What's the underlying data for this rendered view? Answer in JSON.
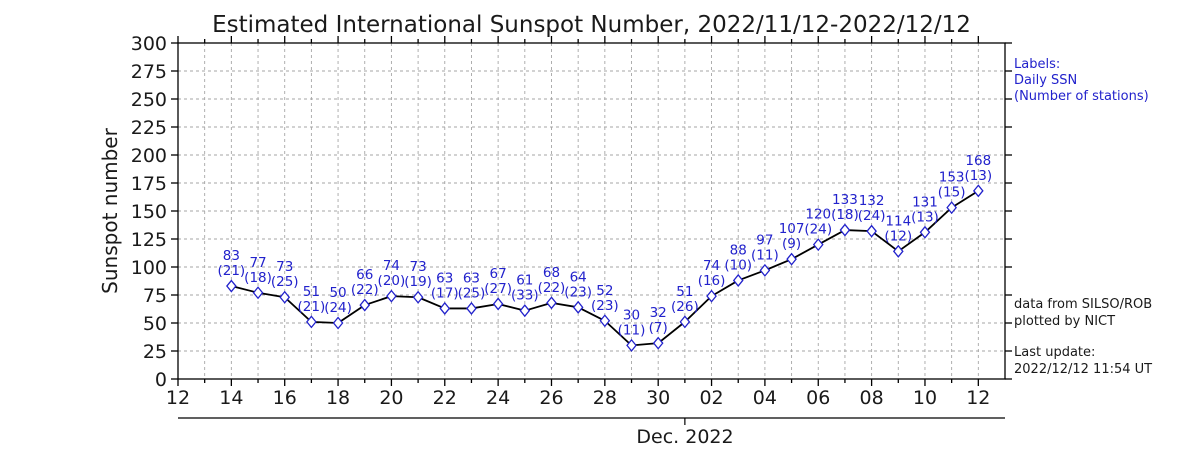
{
  "colors": {
    "accent_blue": "#2222cc",
    "line_black": "#000000",
    "grid_gray": "#a6a6a6",
    "text_black": "#1a1a1a"
  },
  "side_notes": {
    "legend": [
      "Labels:",
      "Daily SSN",
      "(Number of stations)"
    ],
    "credit": [
      "data from SILSO/ROB",
      "plotted by NICT"
    ],
    "last_update": [
      "Last update:",
      "2022/12/12 11:54 UT"
    ]
  },
  "chart_data": {
    "type": "line",
    "title": "Estimated International Sunspot Number, 2022/11/12-2022/12/12",
    "xlabel": "",
    "ylabel": "Sunspot number",
    "ylim": [
      0,
      300
    ],
    "ytick_step": 25,
    "grid": true,
    "legend_position": "none",
    "x_axis": {
      "start_date": "2022/11/12",
      "total_days": 31,
      "major_tick_every_days": 2,
      "minor_tick_every_days": 1,
      "tick_labels": [
        "12",
        "14",
        "16",
        "18",
        "20",
        "22",
        "24",
        "26",
        "28",
        "30",
        "02",
        "04",
        "06",
        "08",
        "10",
        "12"
      ],
      "month_label": "Dec. 2022",
      "month_tick_day_index": 19
    },
    "series": [
      {
        "name": "Daily SSN",
        "line_color": "#000000",
        "marker": "open-diamond",
        "marker_color": "#2222cc",
        "label_color": "#2222cc",
        "first_point_day_index": 2,
        "points": [
          {
            "date": "11/14",
            "value": 83,
            "stations": 21
          },
          {
            "date": "11/15",
            "value": 77,
            "stations": 18
          },
          {
            "date": "11/16",
            "value": 73,
            "stations": 25
          },
          {
            "date": "11/17",
            "value": 51,
            "stations": 21
          },
          {
            "date": "11/18",
            "value": 50,
            "stations": 24
          },
          {
            "date": "11/19",
            "value": 66,
            "stations": 22
          },
          {
            "date": "11/20",
            "value": 74,
            "stations": 20
          },
          {
            "date": "11/21",
            "value": 73,
            "stations": 19
          },
          {
            "date": "11/22",
            "value": 63,
            "stations": 17
          },
          {
            "date": "11/23",
            "value": 63,
            "stations": 25
          },
          {
            "date": "11/24",
            "value": 67,
            "stations": 27
          },
          {
            "date": "11/25",
            "value": 61,
            "stations": 33
          },
          {
            "date": "11/26",
            "value": 68,
            "stations": 22
          },
          {
            "date": "11/27",
            "value": 64,
            "stations": 23
          },
          {
            "date": "11/28",
            "value": 52,
            "stations": 23
          },
          {
            "date": "11/29",
            "value": 30,
            "stations": 11
          },
          {
            "date": "11/30",
            "value": 32,
            "stations": 7
          },
          {
            "date": "12/01",
            "value": 51,
            "stations": 26
          },
          {
            "date": "12/02",
            "value": 74,
            "stations": 16
          },
          {
            "date": "12/03",
            "value": 88,
            "stations": 10
          },
          {
            "date": "12/04",
            "value": 97,
            "stations": 11
          },
          {
            "date": "12/05",
            "value": 107,
            "stations": 9
          },
          {
            "date": "12/06",
            "value": 120,
            "stations": 24
          },
          {
            "date": "12/07",
            "value": 133,
            "stations": 18
          },
          {
            "date": "12/08",
            "value": 132,
            "stations": 24
          },
          {
            "date": "12/09",
            "value": 114,
            "stations": 12
          },
          {
            "date": "12/10",
            "value": 131,
            "stations": 13
          },
          {
            "date": "12/11",
            "value": 153,
            "stations": 15
          },
          {
            "date": "12/12",
            "value": 168,
            "stations": 13
          }
        ]
      }
    ]
  }
}
